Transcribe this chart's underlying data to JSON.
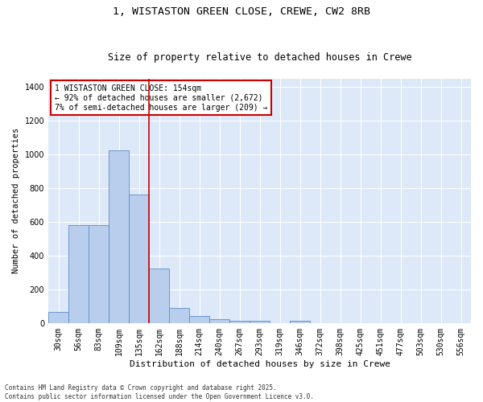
{
  "title1": "1, WISTASTON GREEN CLOSE, CREWE, CW2 8RB",
  "title2": "Size of property relative to detached houses in Crewe",
  "xlabel": "Distribution of detached houses by size in Crewe",
  "ylabel": "Number of detached properties",
  "categories": [
    "30sqm",
    "56sqm",
    "83sqm",
    "109sqm",
    "135sqm",
    "162sqm",
    "188sqm",
    "214sqm",
    "240sqm",
    "267sqm",
    "293sqm",
    "319sqm",
    "346sqm",
    "372sqm",
    "398sqm",
    "425sqm",
    "451sqm",
    "477sqm",
    "503sqm",
    "530sqm",
    "556sqm"
  ],
  "values": [
    65,
    580,
    580,
    1025,
    760,
    325,
    90,
    40,
    25,
    15,
    15,
    0,
    15,
    0,
    0,
    0,
    0,
    0,
    0,
    0,
    0
  ],
  "bar_color": "#b8ceec",
  "bar_edge_color": "#5b8dc8",
  "vline_x": 4.5,
  "vline_color": "#cc0000",
  "annotation_text": "1 WISTASTON GREEN CLOSE: 154sqm\n← 92% of detached houses are smaller (2,672)\n7% of semi-detached houses are larger (209) →",
  "annotation_box_color": "#cc0000",
  "background_color": "#dde8f8",
  "grid_color": "#ffffff",
  "ylim": [
    0,
    1450
  ],
  "yticks": [
    0,
    200,
    400,
    600,
    800,
    1000,
    1200,
    1400
  ],
  "footer": "Contains HM Land Registry data © Crown copyright and database right 2025.\nContains public sector information licensed under the Open Government Licence v3.0.",
  "title1_fontsize": 9.5,
  "title2_fontsize": 8.5,
  "ylabel_fontsize": 7.5,
  "xlabel_fontsize": 8,
  "tick_fontsize": 7,
  "annotation_fontsize": 7,
  "footer_fontsize": 5.5
}
